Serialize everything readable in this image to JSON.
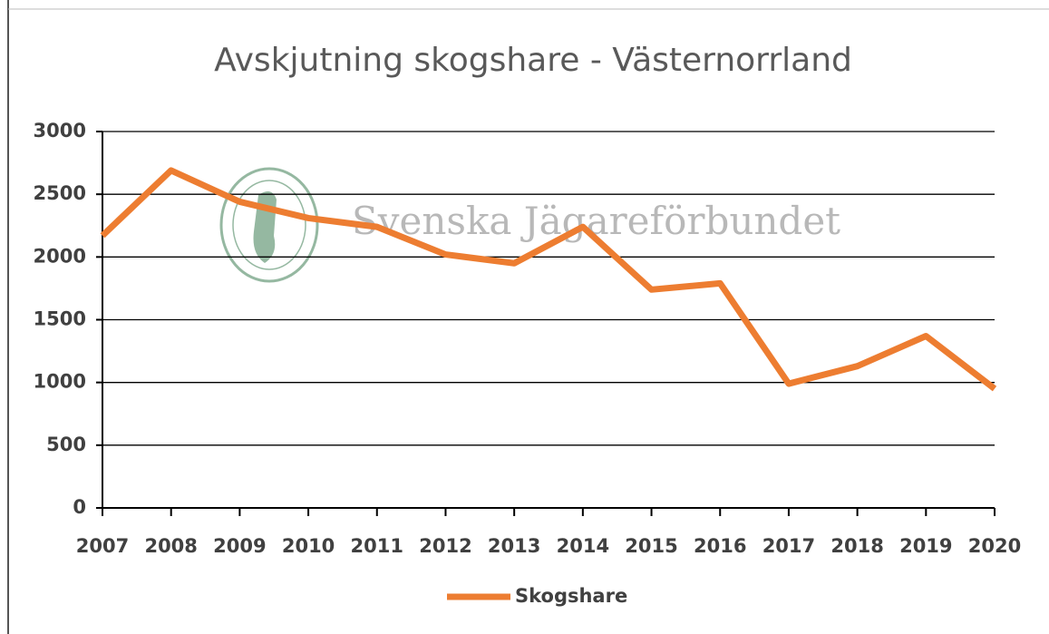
{
  "chart_data": {
    "type": "line",
    "title": "Avskjutning skogshare - Västernorrland",
    "watermark": "Svenska Jägareförbundet",
    "x": [
      2007,
      2008,
      2009,
      2010,
      2011,
      2012,
      2013,
      2014,
      2015,
      2016,
      2017,
      2018,
      2019,
      2020
    ],
    "series": [
      {
        "name": "Skogshare",
        "color": "#ed7d31",
        "values": [
          2170,
          2690,
          2440,
          2310,
          2240,
          2020,
          1950,
          2240,
          1740,
          1790,
          990,
          1130,
          1370,
          950
        ]
      }
    ],
    "xlim": [
      2007,
      2020
    ],
    "xticks": [
      2007,
      2008,
      2009,
      2010,
      2011,
      2012,
      2013,
      2014,
      2015,
      2016,
      2017,
      2018,
      2019,
      2020
    ],
    "ylim": [
      0,
      3000
    ],
    "yticks": [
      0,
      500,
      1000,
      1500,
      2000,
      2500,
      3000
    ],
    "grid": true,
    "legend": "bottom"
  }
}
